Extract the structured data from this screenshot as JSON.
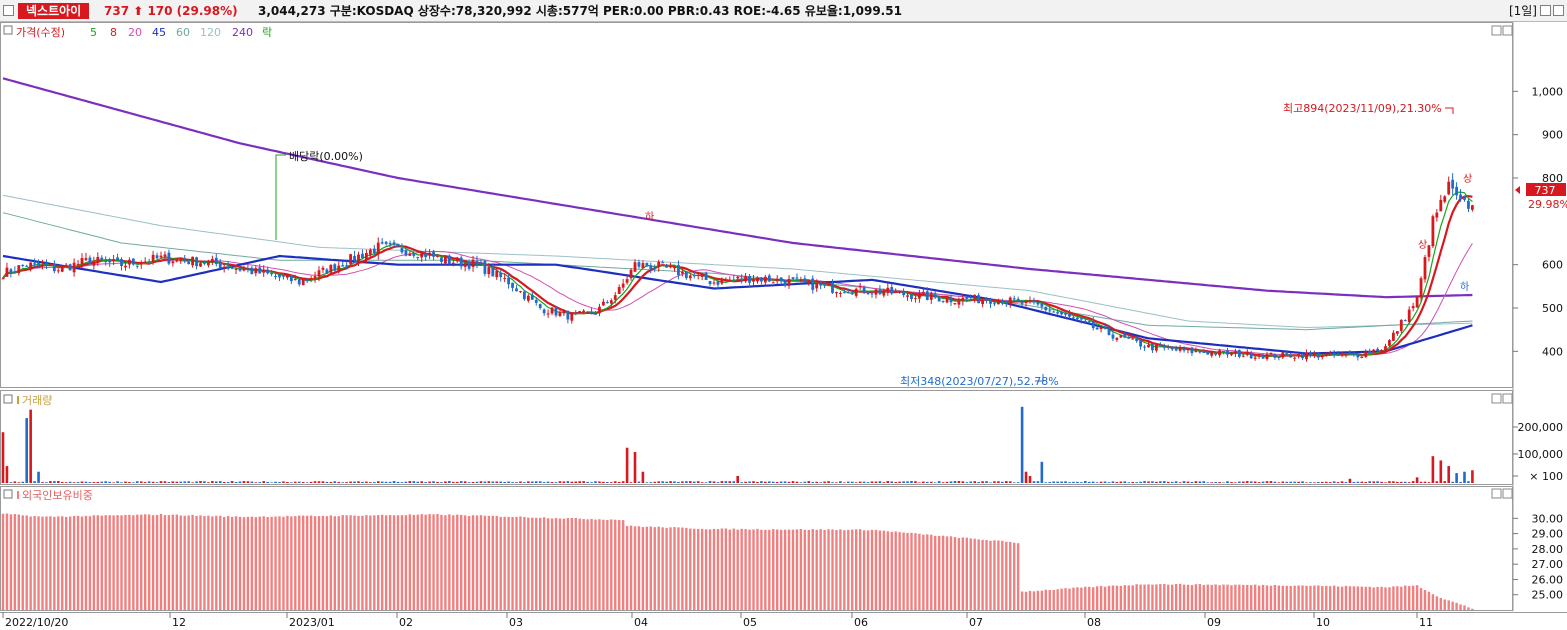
{
  "header": {
    "stock_name": "넥스트아이",
    "price_text": "737 ⬆ 170 (29.98%)",
    "info_text": "3,044,273  구분:KOSDAQ 상장수:78,320,992 시총:577억 PER:0.00 PBR:0.43 ROE:-4.65 유보율:1,099.51",
    "period_label": "[1일]"
  },
  "colors": {
    "up": "#d7181f",
    "down": "#1f6ccd",
    "ma5": "#1aa41a",
    "ma8": "#d7181f",
    "ma20": "#d14fb5",
    "ma45": "#1d2fbf",
    "ma60": "#6fa9a0",
    "ma120": "#9ac0c6",
    "ma240": "#7b2fbf",
    "foreign_bar": "#f08080"
  },
  "chart_data": [
    {
      "type": "candlestick",
      "legend": [
        {
          "label": "가격(수정)",
          "color": "#d7181f"
        },
        {
          "label": "5",
          "color": "#1aa41a"
        },
        {
          "label": "8",
          "color": "#d7181f"
        },
        {
          "label": "20",
          "color": "#d14fb5"
        },
        {
          "label": "45",
          "color": "#1d2fbf"
        },
        {
          "label": "60",
          "color": "#6fa9a0"
        },
        {
          "label": "120",
          "color": "#9ac0c6"
        },
        {
          "label": "240",
          "color": "#7b2fbf"
        },
        {
          "label": "락",
          "color": "#1aa41a"
        }
      ],
      "y_ticks": [
        "1,000",
        "900",
        "800",
        "600",
        "500",
        "400"
      ],
      "ylim": [
        320,
        1100
      ],
      "x_tick_labels": [
        "2022/10/20",
        "12",
        "2023/01",
        "02",
        "03",
        "04",
        "05",
        "06",
        "07",
        "08",
        "09",
        "10",
        "11"
      ],
      "annotations": {
        "high": "최고894(2023/11/09),21.30%",
        "low": "최저348(2023/07/27),52.78%",
        "dividend": "배당락(0.00%)",
        "current_price": "737",
        "current_change": "29.98%",
        "up_marker_1": "상",
        "up_marker_2": "상",
        "down_marker_1": "하",
        "down_marker_2": "하"
      },
      "anchors": [
        [
          0,
          580
        ],
        [
          6,
          600
        ],
        [
          14,
          590
        ],
        [
          22,
          610
        ],
        [
          30,
          600
        ],
        [
          40,
          615
        ],
        [
          52,
          605
        ],
        [
          60,
          590
        ],
        [
          68,
          575
        ],
        [
          75,
          560
        ],
        [
          85,
          600
        ],
        [
          95,
          640
        ],
        [
          105,
          630
        ],
        [
          112,
          610
        ],
        [
          120,
          600
        ],
        [
          128,
          560
        ],
        [
          136,
          500
        ],
        [
          144,
          480
        ],
        [
          150,
          490
        ],
        [
          156,
          540
        ],
        [
          160,
          600
        ],
        [
          166,
          595
        ],
        [
          172,
          580
        ],
        [
          180,
          560
        ],
        [
          190,
          570
        ],
        [
          200,
          560
        ],
        [
          210,
          545
        ],
        [
          220,
          540
        ],
        [
          230,
          530
        ],
        [
          240,
          520
        ],
        [
          252,
          520
        ],
        [
          262,
          505
        ],
        [
          272,
          470
        ],
        [
          280,
          440
        ],
        [
          290,
          410
        ],
        [
          300,
          400
        ],
        [
          310,
          395
        ],
        [
          320,
          390
        ],
        [
          330,
          392
        ],
        [
          342,
          390
        ],
        [
          350,
          410
        ],
        [
          358,
          520
        ],
        [
          362,
          700
        ],
        [
          366,
          780
        ],
        [
          369,
          740
        ],
        [
          372,
          737
        ]
      ],
      "ma_series": [
        {
          "name": "240",
          "anchors": [
            [
              0,
              1030
            ],
            [
              60,
              880
            ],
            [
              100,
              800
            ],
            [
              140,
              740
            ],
            [
              200,
              650
            ],
            [
              260,
              590
            ],
            [
              320,
              540
            ],
            [
              350,
              525
            ],
            [
              372,
              530
            ]
          ]
        },
        {
          "name": "120",
          "anchors": [
            [
              0,
              760
            ],
            [
              40,
              690
            ],
            [
              80,
              640
            ],
            [
              140,
              620
            ],
            [
              200,
              590
            ],
            [
              260,
              540
            ],
            [
              300,
              470
            ],
            [
              330,
              455
            ],
            [
              372,
              465
            ]
          ]
        },
        {
          "name": "60",
          "anchors": [
            [
              0,
              720
            ],
            [
              30,
              650
            ],
            [
              70,
              610
            ],
            [
              120,
              610
            ],
            [
              180,
              580
            ],
            [
              250,
              520
            ],
            [
              290,
              460
            ],
            [
              330,
              450
            ],
            [
              372,
              470
            ]
          ]
        },
        {
          "name": "45",
          "anchors": [
            [
              0,
              620
            ],
            [
              40,
              560
            ],
            [
              70,
              620
            ],
            [
              100,
              600
            ],
            [
              140,
              600
            ],
            [
              180,
              545
            ],
            [
              220,
              565
            ],
            [
              250,
              520
            ],
            [
              290,
              430
            ],
            [
              330,
              395
            ],
            [
              350,
              400
            ],
            [
              372,
              460
            ]
          ]
        }
      ]
    },
    {
      "type": "bar",
      "legend": [
        {
          "label": "거래량",
          "color": "#c9a13a"
        }
      ],
      "y_ticks": [
        "200,000",
        "100,000",
        "× 100"
      ],
      "ylim": [
        0,
        280000
      ],
      "spikes": [
        [
          0,
          180000
        ],
        [
          1,
          60000
        ],
        [
          6,
          230000
        ],
        [
          7,
          260000
        ],
        [
          9,
          40000
        ],
        [
          158,
          125000
        ],
        [
          160,
          110000
        ],
        [
          162,
          40000
        ],
        [
          186,
          25000
        ],
        [
          258,
          270000
        ],
        [
          259,
          40000
        ],
        [
          260,
          25000
        ],
        [
          263,
          75000
        ],
        [
          341,
          15000
        ],
        [
          358,
          20000
        ],
        [
          362,
          95000
        ],
        [
          364,
          80000
        ],
        [
          366,
          60000
        ],
        [
          368,
          35000
        ],
        [
          370,
          40000
        ],
        [
          372,
          45000
        ]
      ]
    },
    {
      "type": "bar",
      "legend": [
        {
          "label": "외국인보유비중",
          "color": "#f08080"
        }
      ],
      "y_ticks": [
        "30.00",
        "29.00",
        "28.00",
        "27.00",
        "26.00",
        "25.00"
      ],
      "ylim": [
        24.0,
        31.2
      ],
      "levels": [
        [
          0,
          30.3
        ],
        [
          10,
          30.1
        ],
        [
          40,
          30.25
        ],
        [
          60,
          30.1
        ],
        [
          110,
          30.25
        ],
        [
          157,
          29.9
        ],
        [
          158,
          29.5
        ],
        [
          180,
          29.3
        ],
        [
          220,
          29.25
        ],
        [
          257,
          28.4
        ],
        [
          258,
          25.2
        ],
        [
          275,
          25.5
        ],
        [
          290,
          25.7
        ],
        [
          330,
          25.6
        ],
        [
          350,
          25.5
        ],
        [
          358,
          25.6
        ],
        [
          364,
          24.8
        ],
        [
          372,
          24.1
        ]
      ]
    }
  ]
}
